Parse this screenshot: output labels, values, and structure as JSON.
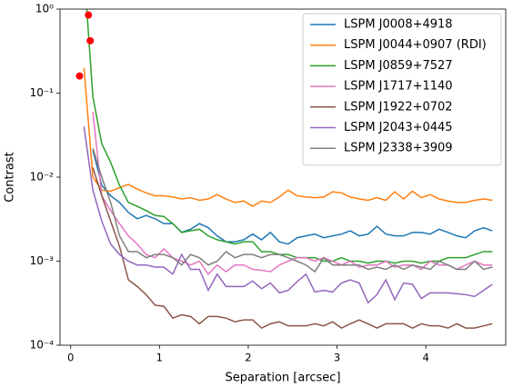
{
  "chart_data": {
    "type": "line",
    "xlabel": "Separation [arcsec]",
    "ylabel": "Contrast",
    "log_y": true,
    "legend": "upper right",
    "xlim": [
      -0.12,
      4.9
    ],
    "xticks": [
      0,
      1,
      2,
      3,
      4
    ],
    "ylim": [
      0.0001,
      1
    ],
    "yticks": [
      {
        "value": 0.0001,
        "label": "10⁻⁴"
      },
      {
        "value": 0.001,
        "label": "10⁻³"
      },
      {
        "value": 0.01,
        "label": "10⁻²"
      },
      {
        "value": 0.1,
        "label": "10⁻¹"
      },
      {
        "value": 1,
        "label": "10⁰"
      }
    ],
    "x": [
      0.15,
      0.25,
      0.35,
      0.45,
      0.55,
      0.65,
      0.75,
      0.85,
      0.95,
      1.05,
      1.15,
      1.25,
      1.35,
      1.45,
      1.55,
      1.65,
      1.75,
      1.85,
      1.95,
      2.05,
      2.15,
      2.25,
      2.35,
      2.45,
      2.55,
      2.65,
      2.75,
      2.85,
      2.95,
      3.05,
      3.15,
      3.25,
      3.35,
      3.45,
      3.55,
      3.65,
      3.75,
      3.85,
      3.95,
      4.05,
      4.15,
      4.25,
      4.35,
      4.45,
      4.55,
      4.65,
      4.75
    ],
    "series": [
      {
        "name": "LSPM J0008+4918",
        "color": "#1f77b4",
        "values": [
          null,
          0.021,
          0.008,
          0.006,
          0.005,
          0.0038,
          0.0032,
          0.0035,
          0.0032,
          0.0028,
          0.0028,
          0.0022,
          0.0024,
          0.0028,
          0.0025,
          0.002,
          0.0017,
          0.0017,
          0.0018,
          0.0021,
          0.0018,
          0.0022,
          0.0017,
          0.0016,
          0.0019,
          0.002,
          0.0021,
          0.0019,
          0.002,
          0.0021,
          0.0023,
          0.002,
          0.0021,
          0.0026,
          0.0021,
          0.002,
          0.002,
          0.0022,
          0.0022,
          0.0021,
          0.0024,
          0.0022,
          0.002,
          0.0019,
          0.0023,
          0.0025,
          0.0023
        ]
      },
      {
        "name": "LSPM J0044+0907 (RDI)",
        "color": "#ff7f0e",
        "values": [
          0.2,
          0.01,
          0.007,
          0.0068,
          0.0075,
          0.0082,
          0.0072,
          0.0065,
          0.006,
          0.006,
          0.0058,
          0.0055,
          0.0057,
          0.0053,
          0.0055,
          0.0062,
          0.0055,
          0.005,
          0.0052,
          0.0045,
          0.0052,
          0.005,
          0.0058,
          0.007,
          0.006,
          0.0058,
          0.0057,
          0.0058,
          0.0067,
          0.0065,
          0.0058,
          0.0055,
          0.0053,
          0.0057,
          0.0053,
          0.0067,
          0.0055,
          0.0068,
          0.0057,
          0.0062,
          0.0055,
          0.0052,
          0.005,
          0.005,
          0.0053,
          0.0055,
          0.0053
        ]
      },
      {
        "name": "LSPM J0859+7527",
        "color": "#2ca02c",
        "values": [
          3,
          0.09,
          0.025,
          0.015,
          0.008,
          0.005,
          0.0045,
          0.004,
          0.0035,
          0.0034,
          0.0028,
          0.0022,
          0.0023,
          0.0024,
          0.002,
          0.0018,
          0.0017,
          0.0016,
          0.0017,
          0.0017,
          0.0013,
          0.0013,
          0.0012,
          0.0012,
          0.0011,
          0.0011,
          0.0011,
          0.001,
          0.001,
          0.0011,
          0.001,
          0.001,
          0.00095,
          0.001,
          0.001,
          0.00095,
          0.001,
          0.001,
          0.00095,
          0.001,
          0.001,
          0.0011,
          0.0011,
          0.0011,
          0.0012,
          0.0013,
          0.0013
        ]
      },
      {
        "name": "LSPM J1717+1140",
        "color": "#e377c2",
        "values": [
          null,
          0.06,
          0.006,
          0.004,
          0.0028,
          0.002,
          0.0016,
          0.0012,
          0.0011,
          0.0014,
          0.0011,
          0.001,
          0.0009,
          0.001,
          0.0007,
          0.0009,
          0.00075,
          0.0009,
          0.0009,
          0.0008,
          0.00078,
          0.00075,
          0.0009,
          0.001,
          0.0011,
          0.0011,
          0.001,
          0.0011,
          0.001,
          0.0009,
          0.001,
          0.00085,
          0.0009,
          0.0009,
          0.001,
          0.00085,
          0.0009,
          0.0009,
          0.0008,
          0.001,
          0.0009,
          0.0009,
          0.0008,
          0.0009,
          0.001,
          0.0009,
          0.0009
        ]
      },
      {
        "name": "LSPM J1922+0702",
        "color": "#8c564b",
        "values": [
          null,
          0.013,
          0.006,
          0.003,
          0.0015,
          0.0006,
          0.0005,
          0.0004,
          0.0003,
          0.00029,
          0.00021,
          0.00023,
          0.00022,
          0.00018,
          0.00022,
          0.00022,
          0.00021,
          0.00019,
          0.0002,
          0.0002,
          0.00016,
          0.00018,
          0.00019,
          0.00017,
          0.00017,
          0.00017,
          0.00018,
          0.00017,
          0.00019,
          0.00016,
          0.00018,
          0.0002,
          0.00018,
          0.00016,
          0.00018,
          0.00018,
          0.00018,
          0.00016,
          0.00018,
          0.00017,
          0.00017,
          0.00016,
          0.00018,
          0.00016,
          0.00016,
          0.00017,
          0.00018
        ]
      },
      {
        "name": "LSPM J2043+0445",
        "color": "#9467bd",
        "values": [
          0.04,
          0.007,
          0.003,
          0.0016,
          0.0012,
          0.001,
          0.0009,
          0.0009,
          0.00085,
          0.00085,
          0.0007,
          0.0012,
          0.0008,
          0.0008,
          0.00045,
          0.0007,
          0.0005,
          0.0005,
          0.0005,
          0.00058,
          0.00047,
          0.00055,
          0.00042,
          0.00045,
          0.00057,
          0.0007,
          0.00043,
          0.00045,
          0.00043,
          0.00055,
          0.0006,
          0.00055,
          0.00032,
          0.0004,
          0.0006,
          0.00035,
          0.00055,
          0.00053,
          0.00036,
          0.00042,
          0.00042,
          0.00042,
          0.00041,
          0.0004,
          0.00038,
          0.00045,
          0.00053
        ]
      },
      {
        "name": "LSPM J2338+3909",
        "color": "#7f7f7f",
        "values": [
          null,
          0.022,
          0.01,
          0.005,
          0.002,
          0.0013,
          0.0013,
          0.0011,
          0.0012,
          0.0012,
          0.0011,
          0.0009,
          0.0012,
          0.0011,
          0.0009,
          0.001,
          0.0013,
          0.0011,
          0.0012,
          0.0012,
          0.0011,
          0.0012,
          0.0012,
          0.0011,
          0.001,
          0.0009,
          0.00075,
          0.0011,
          0.0009,
          0.0009,
          0.0009,
          0.0009,
          0.0008,
          0.00085,
          0.0008,
          0.0009,
          0.0008,
          0.0009,
          0.00085,
          0.0008,
          0.001,
          0.0009,
          0.0008,
          0.0008,
          0.001,
          0.0008,
          0.00085
        ]
      }
    ],
    "points": {
      "color": "#ff0000",
      "x": [
        0.1,
        0.2,
        0.22
      ],
      "values": [
        0.16,
        0.85,
        0.42
      ]
    }
  }
}
